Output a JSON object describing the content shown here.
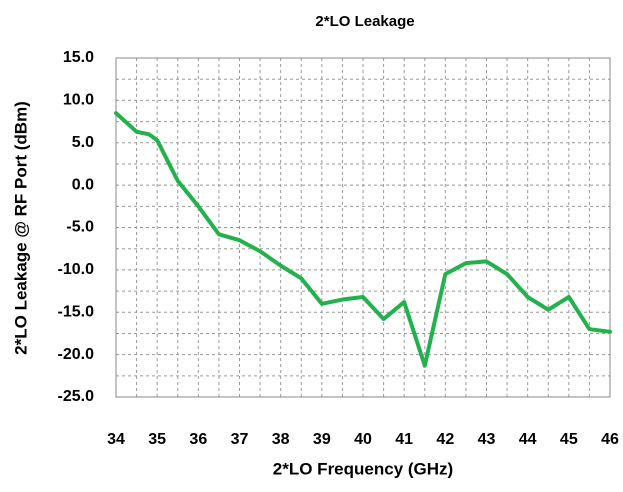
{
  "chart_data": {
    "type": "line",
    "title": "2*LO Leakage",
    "x_label": "2*LO Frequency (GHz)",
    "y_label": "2*LO Leakage @ RF Port (dBm)",
    "x": [
      34,
      34.5,
      34.8,
      35,
      35.5,
      36,
      36.5,
      37,
      37.5,
      38,
      38.5,
      39,
      39.5,
      40,
      40.5,
      41,
      41.5,
      42,
      42.5,
      43,
      43.5,
      44,
      44.5,
      45,
      45.5,
      46
    ],
    "series": [
      {
        "name": "2*LO Leakage",
        "color": "#22b14c",
        "values": [
          8.5,
          6.3,
          6.0,
          5.3,
          0.5,
          -2.5,
          -5.8,
          -6.5,
          -7.8,
          -9.5,
          -11,
          -14,
          -13.5,
          -13.2,
          -15.8,
          -13.8,
          -21.3,
          -10.5,
          -9.2,
          -9.0,
          -10.5,
          -13.2,
          -14.7,
          -13.2,
          -17,
          -17.3
        ]
      }
    ],
    "xlim": [
      34,
      46
    ],
    "xticks": [
      34,
      35,
      36,
      37,
      38,
      39,
      40,
      41,
      42,
      43,
      44,
      45,
      46
    ],
    "ylim": [
      -25,
      15
    ],
    "yticks": [
      {
        "value": -25,
        "label": "-25.0"
      },
      {
        "value": -20,
        "label": "-20.0"
      },
      {
        "value": -15,
        "label": "-15.0"
      },
      {
        "value": -10,
        "label": "-10.0"
      },
      {
        "value": -5,
        "label": "-5.0"
      },
      {
        "value": 0,
        "label": "0.0"
      },
      {
        "value": 5,
        "label": "5.0"
      },
      {
        "value": 10,
        "label": "10.0"
      },
      {
        "value": 15,
        "label": "15.0"
      }
    ],
    "grid": true
  }
}
